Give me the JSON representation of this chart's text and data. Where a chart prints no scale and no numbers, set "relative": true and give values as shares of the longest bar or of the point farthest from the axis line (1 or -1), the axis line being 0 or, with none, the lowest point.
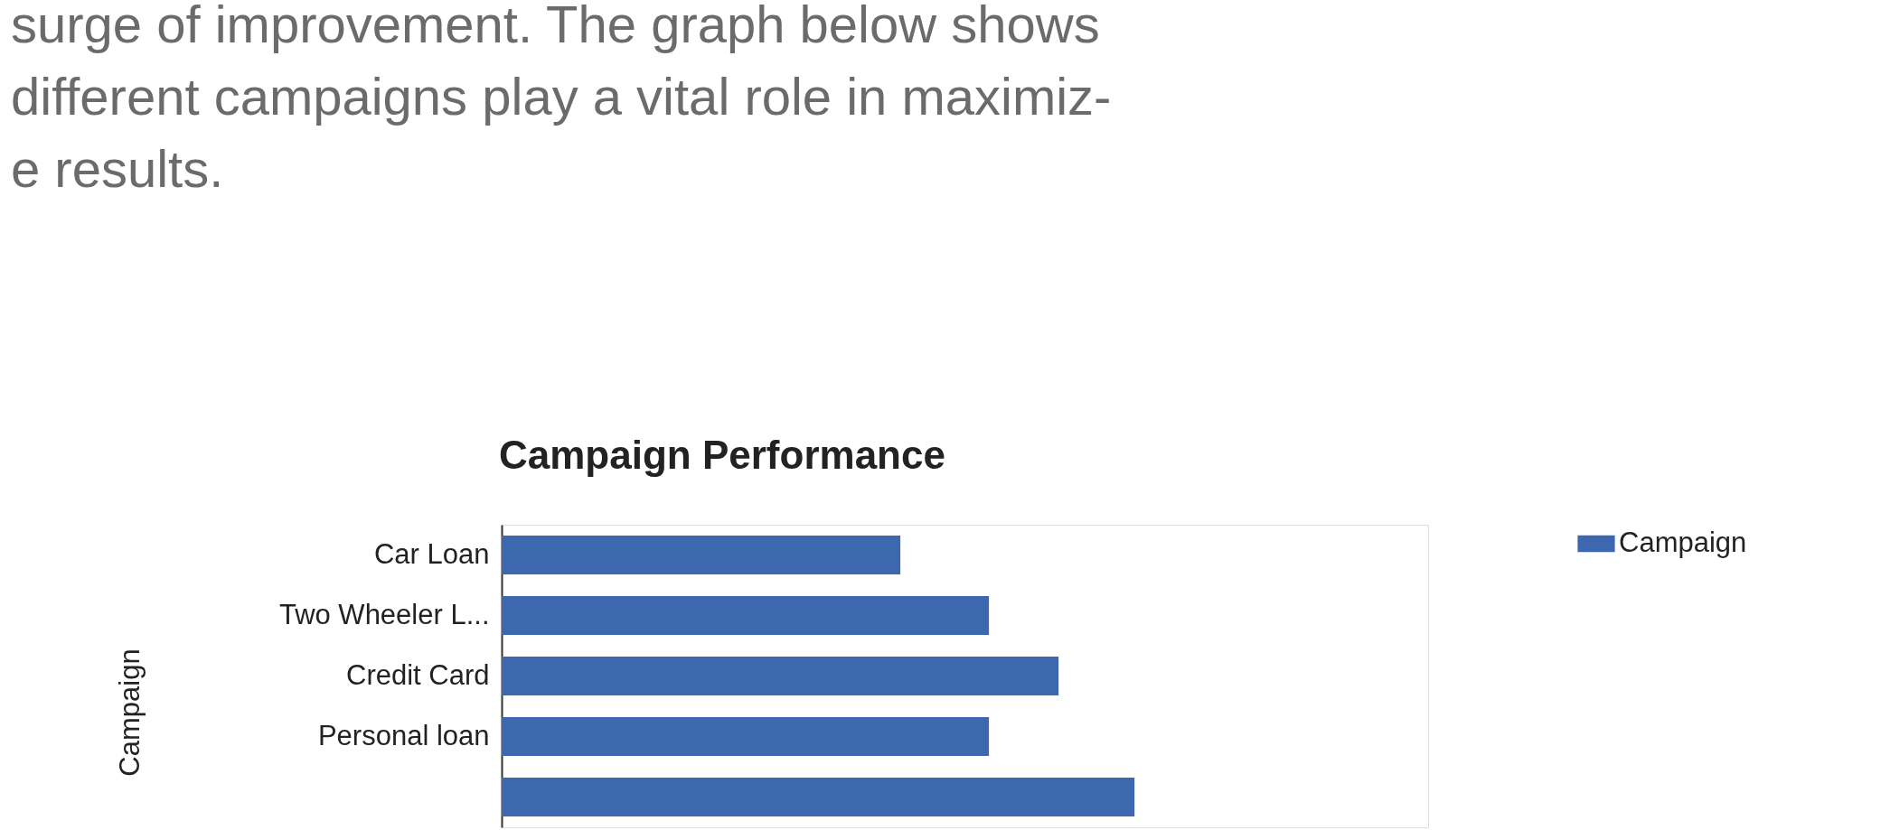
{
  "chart_data": {
    "type": "bar",
    "orientation": "horizontal",
    "relative": true,
    "title": "Campaign Performance",
    "ylabel": "Campaign",
    "annotations": [
      "surge of improvement. The graph below shows",
      "different campaigns play a vital role in maximiz-",
      "e results."
    ],
    "categories": [
      "Car Loan",
      "Two Wheeler L...",
      "Credit Card",
      "Personal loan",
      null
    ],
    "series": [
      {
        "name": "Campaign",
        "color": "#3d68b0",
        "values": [
          0.63,
          0.77,
          0.88,
          0.77,
          1.0
        ]
      }
    ],
    "legend": "top right"
  }
}
